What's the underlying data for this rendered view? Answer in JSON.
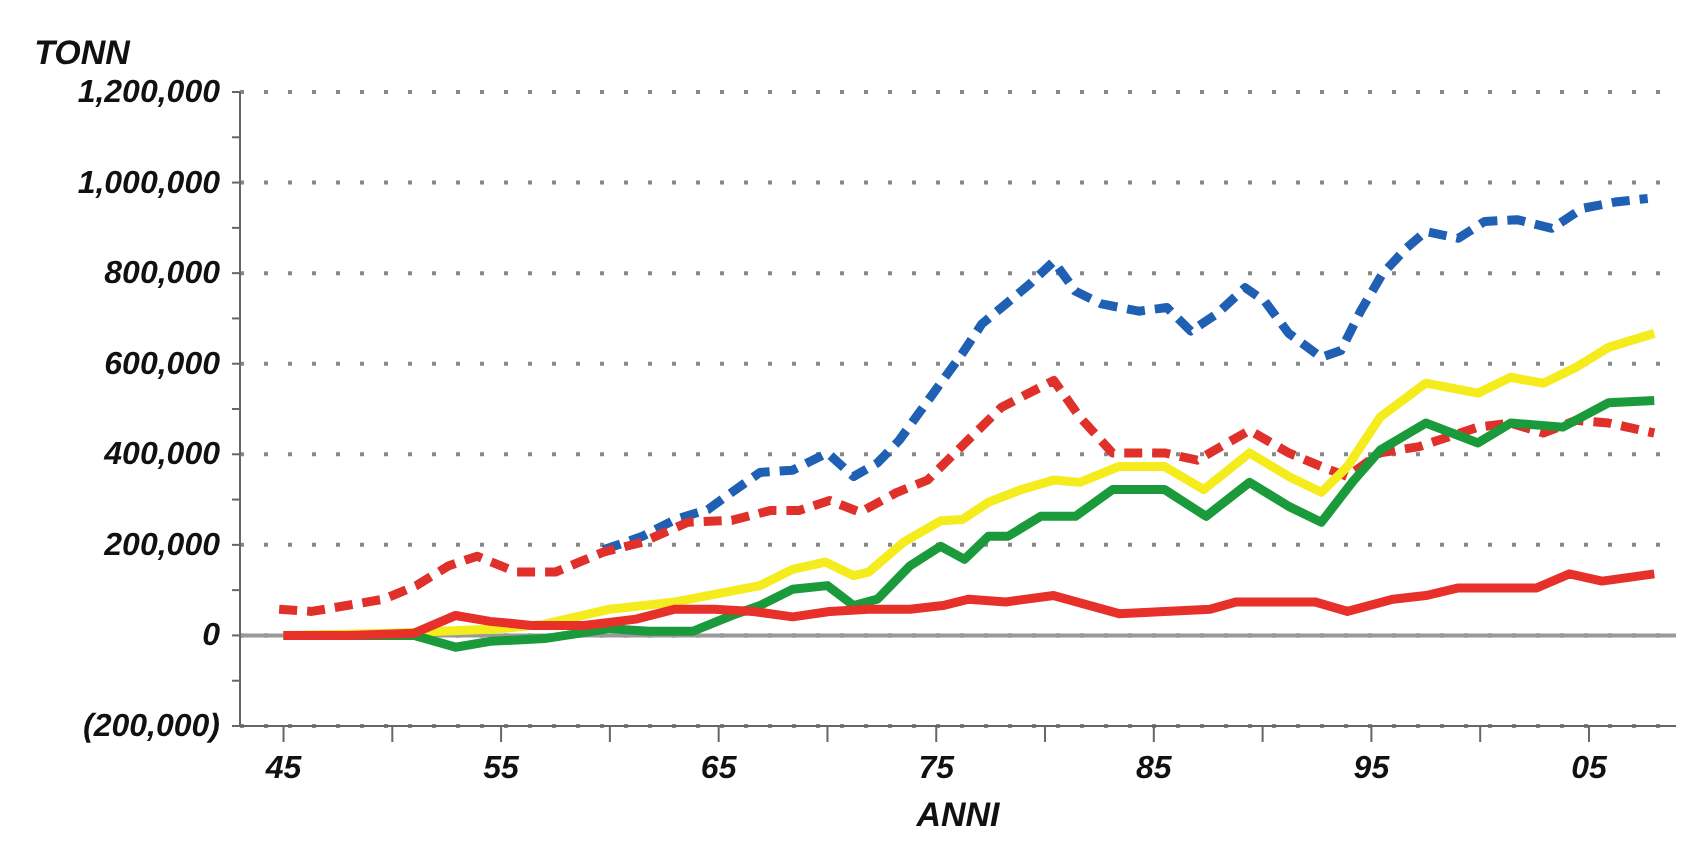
{
  "chart_data": {
    "type": "line",
    "xlabel": "ANNI",
    "ylabel": "TONN",
    "marker": "none",
    "grid": "y",
    "xlim": [
      1943,
      2009
    ],
    "xticks": [
      {
        "value": 1945,
        "label": "45"
      },
      {
        "value": 1950,
        "label": null
      },
      {
        "value": 1955,
        "label": "55"
      },
      {
        "value": 1960,
        "label": null
      },
      {
        "value": 1965,
        "label": "65"
      },
      {
        "value": 1970,
        "label": null
      },
      {
        "value": 1975,
        "label": "75"
      },
      {
        "value": 1980,
        "label": null
      },
      {
        "value": 1985,
        "label": "85"
      },
      {
        "value": 1990,
        "label": null
      },
      {
        "value": 1995,
        "label": "95"
      },
      {
        "value": 2000,
        "label": null
      },
      {
        "value": 2005,
        "label": "05"
      }
    ],
    "ylim": [
      -200000,
      1200000
    ],
    "yticks": [
      {
        "value": -200000,
        "label": "(200,000)"
      },
      {
        "value": -100000,
        "label": null
      },
      {
        "value": 0,
        "label": "0"
      },
      {
        "value": 100000,
        "label": null
      },
      {
        "value": 200000,
        "label": "200,000"
      },
      {
        "value": 300000,
        "label": null
      },
      {
        "value": 400000,
        "label": "400,000"
      },
      {
        "value": 500000,
        "label": null
      },
      {
        "value": 600000,
        "label": "600,000"
      },
      {
        "value": 700000,
        "label": null
      },
      {
        "value": 800000,
        "label": "800,000"
      },
      {
        "value": 900000,
        "label": null
      },
      {
        "value": 1000000,
        "label": "1,000,000"
      },
      {
        "value": 1100000,
        "label": null
      },
      {
        "value": 1200000,
        "label": "1,200,000"
      }
    ],
    "ref_lines": [
      {
        "axis": "y",
        "value": 0,
        "color": "#9a9a9a"
      }
    ],
    "series": [
      {
        "color": "#1f5fb4",
        "line_style": "dashed",
        "x": [
          1959.7,
          1961.5,
          1963,
          1964.5,
          1965.6,
          1966.9,
          1968.4,
          1970,
          1971.2,
          1972.3,
          1973.3,
          1974.4,
          1975.4,
          1976.2,
          1977.1,
          1978.2,
          1979.3,
          1980.4,
          1981.4,
          1982.6,
          1984.3,
          1985.6,
          1986.7,
          1987.9,
          1989.2,
          1990.1,
          1991.2,
          1992.7,
          1993.6,
          1994.5,
          1995.5,
          1996.6,
          1997.5,
          1999,
          2000.2,
          2001.7,
          2003.3,
          2004.7,
          2006.2,
          2007.7
        ],
        "values": [
          189000,
          219000,
          256000,
          278000,
          316000,
          360000,
          365000,
          403000,
          351000,
          381000,
          431000,
          504000,
          570000,
          623000,
          688000,
          732000,
          776000,
          826000,
          760000,
          732000,
          716000,
          724000,
          672000,
          710000,
          768000,
          738000,
          667000,
          614000,
          629000,
          716000,
          798000,
          855000,
          892000,
          877000,
          914000,
          918000,
          899000,
          943000,
          957000,
          965000
        ]
      },
      {
        "color": "#e0302a",
        "line_style": "dashed",
        "x": [
          1944.8,
          1946.3,
          1947.9,
          1949.6,
          1951.1,
          1952.6,
          1953.9,
          1955.7,
          1957.5,
          1959.7,
          1961.5,
          1963.6,
          1965.6,
          1967.4,
          1968.7,
          1970.1,
          1971.5,
          1973.2,
          1974.6,
          1975.8,
          1978,
          1980.4,
          1981.6,
          1983.1,
          1985.5,
          1987,
          1989.4,
          1991.2,
          1992.7,
          1993.9,
          1995.4,
          1997.2,
          1999.9,
          2001.4,
          2002.9,
          2004.4,
          2005.9,
          2008
        ],
        "values": [
          58000,
          53000,
          66000,
          80000,
          110000,
          154000,
          175000,
          140000,
          140000,
          184000,
          206000,
          250000,
          254000,
          276000,
          276000,
          298000,
          272000,
          316000,
          343000,
          400000,
          504000,
          563000,
          482000,
          403000,
          403000,
          387000,
          453000,
          403000,
          373000,
          351000,
          403000,
          417000,
          460000,
          469000,
          447000,
          475000,
          469000,
          447000
        ]
      },
      {
        "color": "#f5ec1e",
        "x": [
          1945,
          1950,
          1955,
          1957,
          1960,
          1963,
          1965.4,
          1966.9,
          1968.4,
          1969.9,
          1971.2,
          1971.9,
          1973.5,
          1975.2,
          1976.2,
          1977.4,
          1978.9,
          1980.4,
          1981.6,
          1983.4,
          1985.5,
          1987.3,
          1989.4,
          1991.2,
          1992.7,
          1993.9,
          1995.4,
          1997.5,
          1999.9,
          2001.4,
          2002.9,
          2004.4,
          2005.9,
          2008
        ],
        "values": [
          0,
          5000,
          15000,
          25000,
          58000,
          74000,
          96000,
          110000,
          146000,
          162000,
          132000,
          140000,
          206000,
          253000,
          256000,
          294000,
          322000,
          343000,
          338000,
          373000,
          373000,
          322000,
          403000,
          351000,
          316000,
          373000,
          482000,
          557000,
          535000,
          570000,
          557000,
          592000,
          636000,
          667000
        ]
      },
      {
        "color": "#1a9a3a",
        "x": [
          1945,
          1948,
          1951,
          1952.9,
          1954.5,
          1957,
          1960,
          1961.8,
          1963.8,
          1965.6,
          1966.9,
          1968.4,
          1970,
          1971.2,
          1972.3,
          1973.8,
          1975.2,
          1976.3,
          1977.4,
          1978.3,
          1979.8,
          1981.4,
          1983.1,
          1985.5,
          1987.4,
          1989.4,
          1991.2,
          1992.7,
          1994.2,
          1995.4,
          1997.5,
          1999.9,
          2001.4,
          2003.8,
          2005.9,
          2008
        ],
        "values": [
          0,
          0,
          0,
          -26000,
          -13000,
          -7000,
          15000,
          9000,
          9000,
          44000,
          66000,
          102000,
          110000,
          66000,
          80000,
          154000,
          197000,
          168000,
          219000,
          219000,
          263000,
          263000,
          322000,
          322000,
          263000,
          338000,
          285000,
          250000,
          343000,
          409000,
          469000,
          425000,
          469000,
          460000,
          514000,
          519000
        ]
      },
      {
        "color": "#e8302a",
        "x": [
          1945,
          1948,
          1951,
          1952.9,
          1954.5,
          1956.4,
          1958.8,
          1961.2,
          1963,
          1964.8,
          1966.6,
          1968.4,
          1970.1,
          1971.9,
          1973.8,
          1975.3,
          1976.5,
          1978.2,
          1980.4,
          1983.4,
          1987.6,
          1988.8,
          1992.4,
          1993.9,
          1996,
          1997.5,
          1999,
          2002.6,
          2004.1,
          2005.6,
          2008
        ],
        "values": [
          0,
          0,
          5000,
          44000,
          31000,
          22000,
          22000,
          36000,
          58000,
          58000,
          53000,
          41000,
          53000,
          58000,
          58000,
          66000,
          80000,
          74000,
          88000,
          48000,
          58000,
          74000,
          74000,
          53000,
          80000,
          88000,
          105000,
          105000,
          136000,
          120000,
          136000
        ]
      }
    ]
  }
}
